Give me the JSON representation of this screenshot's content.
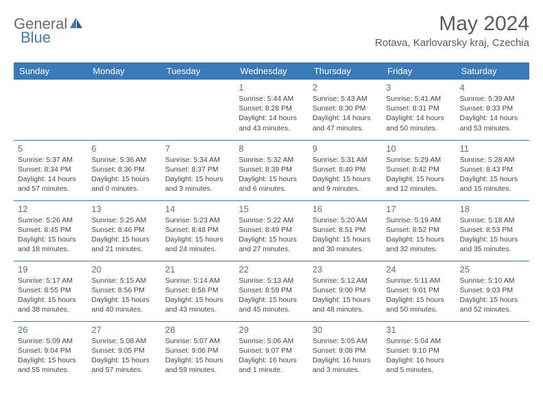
{
  "logo": {
    "general": "General",
    "blue": "Blue"
  },
  "title": "May 2024",
  "location": "Rotava, Karlovarsky kraj, Czechia",
  "colors": {
    "header_bg": "#3a7ab8",
    "header_text": "#ffffff",
    "border": "#3a7ab8",
    "logo_gray": "#6a6a6a",
    "logo_blue": "#3a7ab8"
  },
  "day_headers": [
    "Sunday",
    "Monday",
    "Tuesday",
    "Wednesday",
    "Thursday",
    "Friday",
    "Saturday"
  ],
  "weeks": [
    [
      null,
      null,
      null,
      {
        "n": "1",
        "sr": "5:44 AM",
        "ss": "8:28 PM",
        "dl": "14 hours and 43 minutes."
      },
      {
        "n": "2",
        "sr": "5:43 AM",
        "ss": "8:30 PM",
        "dl": "14 hours and 47 minutes."
      },
      {
        "n": "3",
        "sr": "5:41 AM",
        "ss": "8:31 PM",
        "dl": "14 hours and 50 minutes."
      },
      {
        "n": "4",
        "sr": "5:39 AM",
        "ss": "8:33 PM",
        "dl": "14 hours and 53 minutes."
      }
    ],
    [
      {
        "n": "5",
        "sr": "5:37 AM",
        "ss": "8:34 PM",
        "dl": "14 hours and 57 minutes."
      },
      {
        "n": "6",
        "sr": "5:36 AM",
        "ss": "8:36 PM",
        "dl": "15 hours and 0 minutes."
      },
      {
        "n": "7",
        "sr": "5:34 AM",
        "ss": "8:37 PM",
        "dl": "15 hours and 3 minutes."
      },
      {
        "n": "8",
        "sr": "5:32 AM",
        "ss": "8:39 PM",
        "dl": "15 hours and 6 minutes."
      },
      {
        "n": "9",
        "sr": "5:31 AM",
        "ss": "8:40 PM",
        "dl": "15 hours and 9 minutes."
      },
      {
        "n": "10",
        "sr": "5:29 AM",
        "ss": "8:42 PM",
        "dl": "15 hours and 12 minutes."
      },
      {
        "n": "11",
        "sr": "5:28 AM",
        "ss": "8:43 PM",
        "dl": "15 hours and 15 minutes."
      }
    ],
    [
      {
        "n": "12",
        "sr": "5:26 AM",
        "ss": "8:45 PM",
        "dl": "15 hours and 18 minutes."
      },
      {
        "n": "13",
        "sr": "5:25 AM",
        "ss": "8:46 PM",
        "dl": "15 hours and 21 minutes."
      },
      {
        "n": "14",
        "sr": "5:23 AM",
        "ss": "8:48 PM",
        "dl": "15 hours and 24 minutes."
      },
      {
        "n": "15",
        "sr": "5:22 AM",
        "ss": "8:49 PM",
        "dl": "15 hours and 27 minutes."
      },
      {
        "n": "16",
        "sr": "5:20 AM",
        "ss": "8:51 PM",
        "dl": "15 hours and 30 minutes."
      },
      {
        "n": "17",
        "sr": "5:19 AM",
        "ss": "8:52 PM",
        "dl": "15 hours and 32 minutes."
      },
      {
        "n": "18",
        "sr": "5:18 AM",
        "ss": "8:53 PM",
        "dl": "15 hours and 35 minutes."
      }
    ],
    [
      {
        "n": "19",
        "sr": "5:17 AM",
        "ss": "8:55 PM",
        "dl": "15 hours and 38 minutes."
      },
      {
        "n": "20",
        "sr": "5:15 AM",
        "ss": "8:56 PM",
        "dl": "15 hours and 40 minutes."
      },
      {
        "n": "21",
        "sr": "5:14 AM",
        "ss": "8:58 PM",
        "dl": "15 hours and 43 minutes."
      },
      {
        "n": "22",
        "sr": "5:13 AM",
        "ss": "8:59 PM",
        "dl": "15 hours and 45 minutes."
      },
      {
        "n": "23",
        "sr": "5:12 AM",
        "ss": "9:00 PM",
        "dl": "15 hours and 48 minutes."
      },
      {
        "n": "24",
        "sr": "5:11 AM",
        "ss": "9:01 PM",
        "dl": "15 hours and 50 minutes."
      },
      {
        "n": "25",
        "sr": "5:10 AM",
        "ss": "9:03 PM",
        "dl": "15 hours and 52 minutes."
      }
    ],
    [
      {
        "n": "26",
        "sr": "5:09 AM",
        "ss": "9:04 PM",
        "dl": "15 hours and 55 minutes."
      },
      {
        "n": "27",
        "sr": "5:08 AM",
        "ss": "9:05 PM",
        "dl": "15 hours and 57 minutes."
      },
      {
        "n": "28",
        "sr": "5:07 AM",
        "ss": "9:06 PM",
        "dl": "15 hours and 59 minutes."
      },
      {
        "n": "29",
        "sr": "5:06 AM",
        "ss": "9:07 PM",
        "dl": "16 hours and 1 minute."
      },
      {
        "n": "30",
        "sr": "5:05 AM",
        "ss": "9:08 PM",
        "dl": "16 hours and 3 minutes."
      },
      {
        "n": "31",
        "sr": "5:04 AM",
        "ss": "9:10 PM",
        "dl": "16 hours and 5 minutes."
      },
      null
    ]
  ],
  "labels": {
    "sunrise": "Sunrise:",
    "sunset": "Sunset:",
    "daylight": "Daylight:"
  }
}
